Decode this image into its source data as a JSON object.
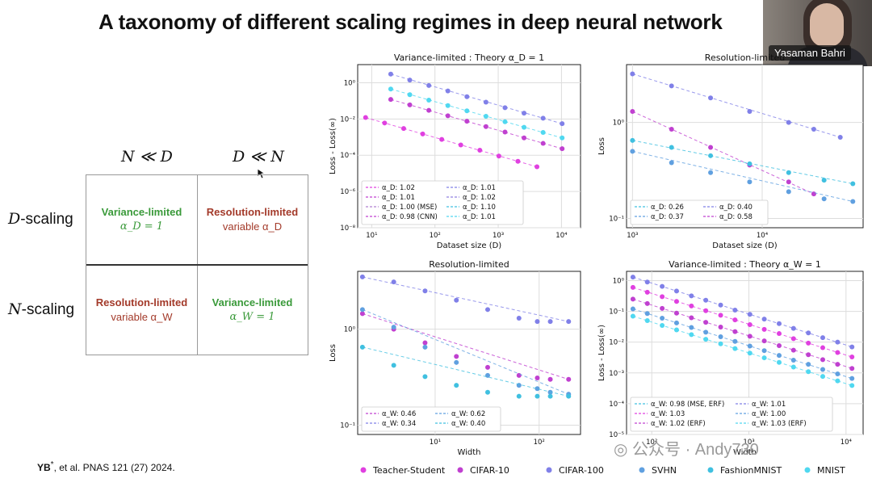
{
  "slide": {
    "title": "A taxonomy of different scaling regimes in deep neural network",
    "speaker_name": "Yasaman Bahri",
    "reference_author": "YB",
    "reference_star": "*",
    "reference_rest": ", et al. PNAS 121 (27) 2024.",
    "watermark": "公众号 · Andy730"
  },
  "taxonomy": {
    "col_left": "N ≪ D",
    "col_right": "D ≪ N",
    "row_top_label": "D",
    "row_top_suffix": "-scaling",
    "row_bottom_label": "N",
    "row_bottom_suffix": "-scaling",
    "cells": {
      "top_left_title": "Variance-limited",
      "top_left_sub": "α_D = 1",
      "top_right_title": "Resolution-limited",
      "top_right_sub": "variable α_D",
      "bottom_left_title": "Resolution-limited",
      "bottom_left_sub": "variable α_W",
      "bottom_right_title": "Variance-limited",
      "bottom_right_sub": "α_W = 1"
    }
  },
  "colors": {
    "teacher_student": "#e040e0",
    "cifar10": "#c040d0",
    "cifar100": "#8080e8",
    "svhn": "#60a0e0",
    "fashionmnist": "#40c0e0",
    "mnist": "#50d8f0"
  },
  "legend_bottom": [
    "Teacher-Student",
    "CIFAR-10",
    "CIFAR-100",
    "SVHN",
    "FashionMNIST",
    "MNIST"
  ],
  "chart_data": [
    {
      "type": "scatter",
      "title": "Variance-limited : Theory α_D = 1",
      "xlabel": "Dataset size (D)",
      "ylabel": "Loss - Loss(∞)",
      "xscale": "log",
      "yscale": "log",
      "xlim": [
        6,
        20000
      ],
      "ylim": [
        1e-08,
        10
      ],
      "xticks": [
        "10¹",
        "10²",
        "10³",
        "10⁴"
      ],
      "yticks": [
        "10⁰",
        "10⁻²",
        "10⁻⁴",
        "10⁻⁶",
        "10⁻⁸"
      ],
      "legend": [
        "α_D: 1.02",
        "α_D: 1.01",
        "α_D: 1.00 (MSE)",
        "α_D: 0.98 (CNN)",
        "α_D: 1.01",
        "α_D: 1.02",
        "α_D: 1.10",
        "α_D: 1.01"
      ],
      "series": [
        {
          "name": "CIFAR-100",
          "x": [
            20,
            40,
            80,
            160,
            320,
            640,
            1280,
            2560,
            5120,
            10240
          ],
          "y": [
            3.0,
            1.4,
            0.7,
            0.35,
            0.17,
            0.085,
            0.042,
            0.021,
            0.011,
            0.0055
          ]
        },
        {
          "name": "MNIST",
          "x": [
            20,
            40,
            80,
            160,
            320,
            640,
            1280,
            2560,
            5120,
            10240
          ],
          "y": [
            0.45,
            0.22,
            0.11,
            0.055,
            0.028,
            0.014,
            0.007,
            0.0035,
            0.0018,
            0.0009
          ]
        },
        {
          "name": "CIFAR-10",
          "x": [
            20,
            40,
            80,
            160,
            320,
            640,
            1280,
            2560,
            5120,
            10240
          ],
          "y": [
            0.12,
            0.06,
            0.03,
            0.015,
            0.0075,
            0.0038,
            0.0019,
            0.0009,
            0.00045,
            0.00023
          ]
        },
        {
          "name": "Teacher-Student",
          "x": [
            8,
            16,
            32,
            64,
            128,
            256,
            512,
            1024,
            2048,
            4096
          ],
          "y": [
            0.012,
            0.006,
            0.003,
            0.0015,
            0.00075,
            0.00037,
            0.00019,
            9e-05,
            4.6e-05,
            2.3e-05
          ]
        }
      ]
    },
    {
      "type": "scatter",
      "title": "Resolution-limited",
      "xlabel": "Dataset size (D)",
      "ylabel": "Loss",
      "xscale": "log",
      "yscale": "log",
      "xlim": [
        900,
        60000
      ],
      "ylim": [
        0.08,
        4
      ],
      "xticks": [
        "10³",
        "10⁴"
      ],
      "yticks": [
        "10⁰",
        "10⁻¹"
      ],
      "legend": [
        "α_D: 0.26",
        "α_D: 0.37",
        "α_D: 0.40",
        "α_D: 0.58"
      ],
      "series": [
        {
          "name": "CIFAR-100",
          "x": [
            1000,
            2000,
            4000,
            8000,
            16000,
            25000,
            40000
          ],
          "y": [
            3.2,
            2.4,
            1.8,
            1.3,
            1.0,
            0.85,
            0.7
          ]
        },
        {
          "name": "CIFAR-10",
          "x": [
            1000,
            2000,
            4000,
            8000,
            16000,
            25000
          ],
          "y": [
            1.3,
            0.85,
            0.55,
            0.36,
            0.24,
            0.18
          ]
        },
        {
          "name": "FashionMNIST",
          "x": [
            1000,
            2000,
            4000,
            8000,
            16000,
            30000,
            50000
          ],
          "y": [
            0.65,
            0.55,
            0.45,
            0.37,
            0.3,
            0.25,
            0.23
          ]
        },
        {
          "name": "SVHN",
          "x": [
            1000,
            2000,
            4000,
            8000,
            16000,
            30000,
            50000
          ],
          "y": [
            0.5,
            0.38,
            0.3,
            0.24,
            0.19,
            0.16,
            0.15
          ]
        }
      ]
    },
    {
      "type": "scatter",
      "title": "Resolution-limited",
      "xlabel": "Width",
      "ylabel": "Loss",
      "xscale": "log",
      "yscale": "log",
      "xlim": [
        1.8,
        250
      ],
      "ylim": [
        0.08,
        4
      ],
      "xticks": [
        "10¹",
        "10²"
      ],
      "yticks": [
        "10⁰",
        "10⁻¹"
      ],
      "legend": [
        "α_W: 0.46",
        "α_W: 0.34",
        "α_W: 0.62",
        "α_W: 0.40"
      ],
      "series": [
        {
          "name": "CIFAR-100",
          "x": [
            2,
            4,
            8,
            16,
            32,
            64,
            96,
            128,
            192
          ],
          "y": [
            3.5,
            3.1,
            2.5,
            2.0,
            1.6,
            1.3,
            1.2,
            1.2,
            1.2
          ]
        },
        {
          "name": "CIFAR-10",
          "x": [
            2,
            4,
            8,
            16,
            32,
            64,
            96,
            128,
            192
          ],
          "y": [
            1.45,
            1.0,
            0.72,
            0.52,
            0.4,
            0.33,
            0.31,
            0.3,
            0.3
          ]
        },
        {
          "name": "SVHN",
          "x": [
            2,
            4,
            8,
            16,
            32,
            64,
            96,
            128,
            192
          ],
          "y": [
            1.6,
            1.05,
            0.65,
            0.45,
            0.33,
            0.26,
            0.24,
            0.22,
            0.21
          ]
        },
        {
          "name": "FashionMNIST",
          "x": [
            2,
            4,
            8,
            16,
            32,
            64,
            96,
            128,
            192
          ],
          "y": [
            0.65,
            0.42,
            0.32,
            0.26,
            0.22,
            0.2,
            0.2,
            0.2,
            0.2
          ]
        }
      ]
    },
    {
      "type": "scatter",
      "title": "Variance-limited : Theory α_W = 1",
      "xlabel": "Width",
      "ylabel": "Loss - Loss(∞)",
      "xscale": "log",
      "yscale": "log",
      "xlim": [
        55,
        15000
      ],
      "ylim": [
        1e-05,
        2
      ],
      "xticks": [
        "10²",
        "10³",
        "10⁴"
      ],
      "yticks": [
        "10⁰",
        "10⁻¹",
        "10⁻²",
        "10⁻³",
        "10⁻⁴",
        "10⁻⁵"
      ],
      "legend": [
        "α_W: 0.98 (MSE, ERF)",
        "α_W: 1.03",
        "α_W: 1.02 (ERF)",
        "α_W: 1.01",
        "α_W: 1.00",
        "α_W: 1.03 (ERF)"
      ],
      "series": [
        {
          "name": "CIFAR-100",
          "x": [
            64,
            90,
            128,
            180,
            256,
            360,
            512,
            720,
            1024,
            1440,
            2048,
            2880,
            4096,
            5760,
            8192,
            11520
          ],
          "y": [
            1.3,
            0.9,
            0.65,
            0.46,
            0.32,
            0.23,
            0.16,
            0.11,
            0.08,
            0.056,
            0.04,
            0.028,
            0.02,
            0.014,
            0.01,
            0.007
          ]
        },
        {
          "name": "Teacher-Student",
          "x": [
            64,
            90,
            128,
            180,
            256,
            360,
            512,
            720,
            1024,
            1440,
            2048,
            2880,
            4096,
            5760,
            8192,
            11520
          ],
          "y": [
            0.6,
            0.42,
            0.3,
            0.21,
            0.15,
            0.105,
            0.075,
            0.053,
            0.037,
            0.026,
            0.019,
            0.013,
            0.0093,
            0.0066,
            0.0046,
            0.0033
          ]
        },
        {
          "name": "CIFAR-10",
          "x": [
            64,
            90,
            128,
            180,
            256,
            360,
            512,
            720,
            1024,
            1440,
            2048,
            2880,
            4096,
            5760,
            8192,
            11520
          ],
          "y": [
            0.25,
            0.18,
            0.125,
            0.088,
            0.062,
            0.044,
            0.031,
            0.022,
            0.0155,
            0.011,
            0.0077,
            0.0055,
            0.0039,
            0.0027,
            0.0019,
            0.0014
          ]
        },
        {
          "name": "SVHN",
          "x": [
            64,
            90,
            128,
            180,
            256,
            360,
            512,
            720,
            1024,
            1440,
            2048,
            2880,
            4096,
            5760,
            8192,
            11520
          ],
          "y": [
            0.12,
            0.085,
            0.06,
            0.042,
            0.03,
            0.021,
            0.015,
            0.0106,
            0.0075,
            0.0053,
            0.0037,
            0.0026,
            0.0019,
            0.0013,
            0.00093,
            0.00066
          ]
        },
        {
          "name": "MNIST",
          "x": [
            64,
            90,
            128,
            180,
            256,
            360,
            512,
            720,
            1024,
            1440,
            2048,
            2880,
            4096,
            5760,
            8192,
            11520
          ],
          "y": [
            0.07,
            0.05,
            0.035,
            0.025,
            0.0175,
            0.0124,
            0.0088,
            0.0062,
            0.0044,
            0.0031,
            0.0022,
            0.00155,
            0.0011,
            0.00077,
            0.00055,
            0.00039
          ]
        }
      ]
    }
  ]
}
